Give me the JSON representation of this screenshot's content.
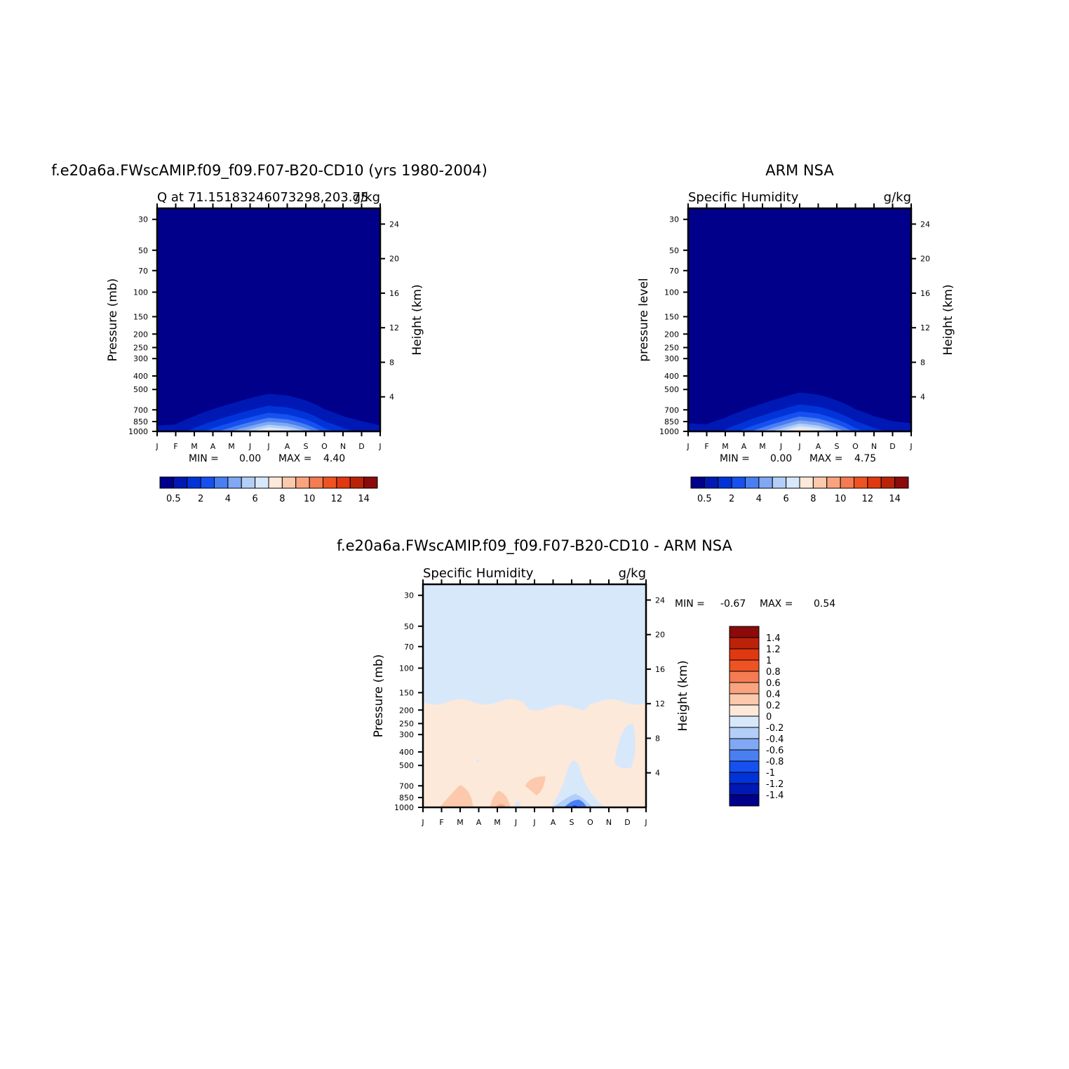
{
  "chart_data": [
    {
      "type": "heatmap",
      "title": "f.e20a6a.FWscAMIP.f09_f09.F07-B20-CD10 (yrs 1980-2004)",
      "subtitle_left": "Q at 71.15183246073298,203.75",
      "subtitle_right": "g/kg",
      "xlabel": "",
      "ylabel": "Pressure (mb)",
      "y2label": "Height (km)",
      "x_ticks": [
        "J",
        "F",
        "M",
        "A",
        "M",
        "J",
        "J",
        "A",
        "S",
        "O",
        "N",
        "D",
        "J"
      ],
      "y_ticks": [
        "30",
        "50",
        "70",
        "100",
        "150",
        "200",
        "250",
        "300",
        "400",
        "500",
        "700",
        "850",
        "1000"
      ],
      "y2_ticks": [
        "24",
        "20",
        "16",
        "12",
        "8",
        "4"
      ],
      "ylim": [
        1000,
        25
      ],
      "min_label": "MIN =",
      "min_value": "0.00",
      "max_label": "MAX =",
      "max_value": "4.40",
      "contour_levels": [
        0.5,
        1,
        1.5,
        2,
        2.5,
        3,
        3.5,
        4
      ],
      "surface_values_by_month": [
        0.7,
        0.75,
        1.2,
        1.8,
        2.5,
        3.4,
        4.4,
        4.0,
        3.0,
        1.8,
        1.2,
        0.9,
        0.7
      ],
      "colorbar_labels": [
        "0.5",
        "2",
        "4",
        "6",
        "8",
        "10",
        "12",
        "14"
      ]
    },
    {
      "type": "heatmap",
      "title": "ARM NSA",
      "subtitle_left": "Specific Humidity",
      "subtitle_right": "g/kg",
      "xlabel": "",
      "ylabel": "pressure level",
      "y2label": "Height (km)",
      "x_ticks": [
        "J",
        "F",
        "M",
        "A",
        "M",
        "J",
        "J",
        "A",
        "S",
        "O",
        "N",
        "D",
        "J"
      ],
      "y_ticks": [
        "30",
        "50",
        "70",
        "100",
        "150",
        "200",
        "250",
        "300",
        "400",
        "500",
        "700",
        "850",
        "1000"
      ],
      "y2_ticks": [
        "24",
        "20",
        "16",
        "12",
        "8",
        "4"
      ],
      "ylim": [
        1000,
        25
      ],
      "min_label": "MIN =",
      "min_value": "0.00",
      "max_label": "MAX =",
      "max_value": "4.75",
      "contour_levels": [
        0.5,
        1,
        1.5,
        2,
        2.5,
        3,
        3.5,
        4,
        4.5
      ],
      "surface_values_by_month": [
        0.8,
        0.75,
        1.1,
        1.7,
        2.5,
        3.5,
        4.75,
        4.2,
        3.0,
        1.8,
        1.2,
        0.9,
        0.8
      ],
      "colorbar_labels": [
        "0.5",
        "2",
        "4",
        "6",
        "8",
        "10",
        "12",
        "14"
      ]
    },
    {
      "type": "heatmap",
      "title": "f.e20a6a.FWscAMIP.f09_f09.F07-B20-CD10 - ARM NSA",
      "subtitle_left": "Specific Humidity",
      "subtitle_right": "g/kg",
      "xlabel": "",
      "ylabel": "Pressure (mb)",
      "y2label": "Height (km)",
      "x_ticks": [
        "J",
        "F",
        "M",
        "A",
        "M",
        "J",
        "J",
        "A",
        "S",
        "O",
        "N",
        "D",
        "J"
      ],
      "y_ticks": [
        "30",
        "50",
        "70",
        "100",
        "150",
        "200",
        "250",
        "300",
        "400",
        "500",
        "700",
        "850",
        "1000"
      ],
      "y2_ticks": [
        "24",
        "20",
        "16",
        "12",
        "8",
        "4"
      ],
      "ylim": [
        1000,
        25
      ],
      "min_label": "MIN =",
      "min_value": "-0.67",
      "max_label": "MAX =",
      "max_value": "0.54",
      "boundary_zero_pressure_mb": 175,
      "colorbar_labels": [
        "1.4",
        "1.2",
        "1",
        "0.8",
        "0.6",
        "0.4",
        "0.2",
        "0",
        "-0.2",
        "-0.4",
        "-0.6",
        "-0.8",
        "-1",
        "-1.2",
        "-1.4"
      ]
    }
  ],
  "colors": {
    "sequential": [
      "#00008b",
      "#0019b4",
      "#0034d8",
      "#1650f0",
      "#4a7ff2",
      "#80a8f4",
      "#b3cff8",
      "#d8e8fb",
      "#fde9da",
      "#fcc9ac",
      "#f9a47f",
      "#f47b52",
      "#ef5223",
      "#e03810",
      "#bb2308",
      "#8b0a0a"
    ],
    "diverging": [
      "#8b0a0a",
      "#bb2308",
      "#e03810",
      "#ef5223",
      "#f47b52",
      "#f9a47f",
      "#fcc9ac",
      "#fde9da",
      "#d8e8fb",
      "#b3cff8",
      "#80a8f4",
      "#4a7ff2",
      "#1650f0",
      "#0034d8",
      "#0019b4",
      "#00008b"
    ]
  }
}
